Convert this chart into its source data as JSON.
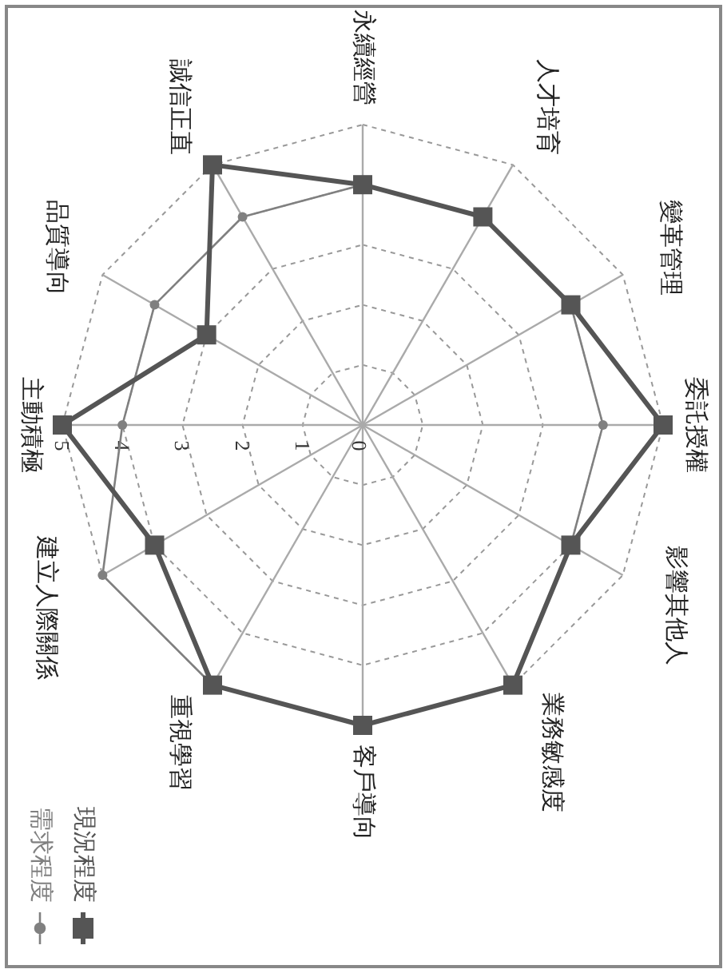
{
  "chart_data": {
    "type": "radar",
    "categories": [
      "永續經營",
      "人才培育",
      "變革管理",
      "委託授權",
      "影響其他人",
      "業務敏感度",
      "客戶導向",
      "重視學習",
      "建立人際關係",
      "主動積極",
      "品質導向",
      "誠信正直"
    ],
    "series": [
      {
        "name": "需求程度",
        "color": "#808080",
        "marker": "circle",
        "values": [
          4,
          4,
          4,
          4,
          4,
          5,
          5,
          5,
          5,
          4,
          4,
          4
        ]
      },
      {
        "name": "現況程度",
        "color": "#555555",
        "marker": "square",
        "values": [
          4,
          4,
          4,
          5,
          4,
          5,
          5,
          5,
          4,
          5,
          3,
          5
        ]
      }
    ],
    "ylim": [
      0,
      5
    ],
    "yticks": [
      0,
      1,
      2,
      3,
      4,
      5
    ],
    "grid": true,
    "legend": "bottom left"
  }
}
